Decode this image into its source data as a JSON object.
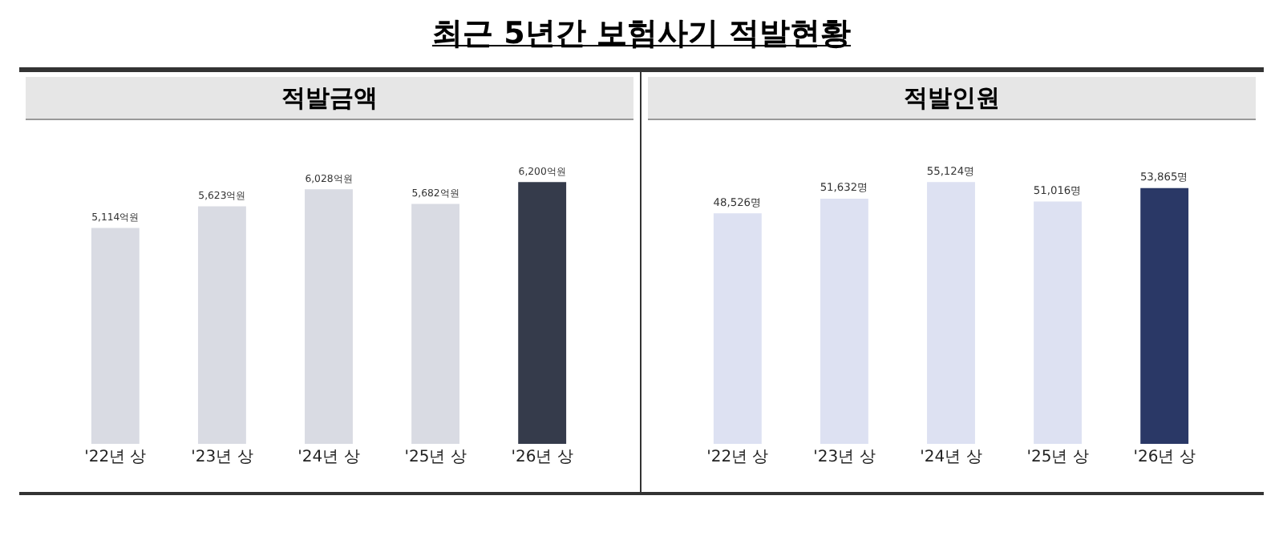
{
  "chart_data": [
    {
      "type": "bar",
      "title": "최근 5년간 보험사기 적발현황",
      "subtitle": "적발금액",
      "categories": [
        "'22년 상",
        "'23년 상",
        "'24년 상",
        "'25년 상",
        "'26년 상"
      ],
      "values": [
        5114,
        5623,
        6028,
        5682,
        6200
      ],
      "colors": [
        "#d9dbe3",
        "#d9dbe3",
        "#d9dbe3",
        "#d9dbe3",
        "#353b4b"
      ],
      "value_labels": [
        "5,114억원",
        "5,623억원",
        "6,028억원",
        "5,682억원",
        "6,200억원"
      ]
    },
    {
      "type": "bar",
      "subtitle": "적발인원",
      "categories": [
        "'22년 상",
        "'23년 상",
        "'24년 상",
        "'25년 상",
        "'26년 상"
      ],
      "values": [
        48526,
        51632,
        55124,
        51016,
        53865
      ],
      "colors": [
        "#dde1f2",
        "#dde1f2",
        "#dde1f2",
        "#dde1f2",
        "#2a3866"
      ],
      "value_labels": [
        "48,526명",
        "51,632명",
        "55,124명",
        "51,016명",
        "53,865명"
      ]
    }
  ]
}
